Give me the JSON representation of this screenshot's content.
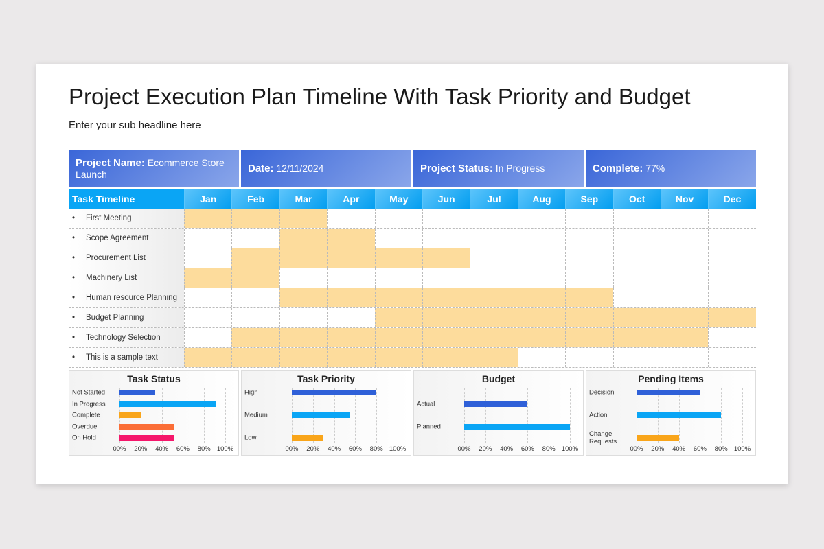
{
  "title": "Project Execution Plan Timeline With Task Priority and Budget",
  "subtitle": "Enter your sub headline here",
  "info": [
    {
      "label": "Project Name:",
      "value": "Ecommerce Store Launch"
    },
    {
      "label": "Date:",
      "value": "12/11/2024"
    },
    {
      "label": "Project Status:",
      "value": "In Progress"
    },
    {
      "label": "Complete:",
      "value": "77%"
    }
  ],
  "timeline": {
    "header": "Task Timeline",
    "months": [
      "Jan",
      "Feb",
      "Mar",
      "Apr",
      "May",
      "Jun",
      "Jul",
      "Aug",
      "Sep",
      "Oct",
      "Nov",
      "Dec"
    ],
    "bullet": "•",
    "tasks": [
      {
        "name": "First Meeting",
        "start": 1,
        "end": 3
      },
      {
        "name": "Scope Agreement",
        "start": 3,
        "end": 4
      },
      {
        "name": "Procurement List",
        "start": 2,
        "end": 6
      },
      {
        "name": "Machinery List",
        "start": 1,
        "end": 2
      },
      {
        "name": "Human resource Planning",
        "start": 3,
        "end": 9
      },
      {
        "name": "Budget Planning",
        "start": 5,
        "end": 12
      },
      {
        "name": "Technology Selection",
        "start": 2,
        "end": 11
      },
      {
        "name": "This is a sample text",
        "start": 1,
        "end": 7
      }
    ],
    "colors": {
      "bar": "#fddc9c"
    }
  },
  "chart_data": [
    {
      "type": "bar",
      "title": "Task Status",
      "ticks": [
        "00%",
        "20%",
        "40%",
        "60%",
        "80%",
        "100%"
      ],
      "xlim": [
        0,
        100
      ],
      "categories": [
        "Not Started",
        "In Progress",
        "Complete",
        "Overdue",
        "On Hold"
      ],
      "values": [
        34,
        91,
        20,
        52,
        52
      ],
      "colors": [
        "#2f60d8",
        "#0aa5f5",
        "#f9a51a",
        "#fb6e37",
        "#f5176b"
      ]
    },
    {
      "type": "bar",
      "title": "Task Priority",
      "ticks": [
        "00%",
        "20%",
        "40%",
        "60%",
        "80%",
        "100%"
      ],
      "xlim": [
        0,
        100
      ],
      "categories": [
        "High",
        "Medium",
        "Low"
      ],
      "values": [
        80,
        55,
        30
      ],
      "colors": [
        "#2f60d8",
        "#0aa5f5",
        "#f9a51a"
      ]
    },
    {
      "type": "bar",
      "title": "Budget",
      "ticks": [
        "00%",
        "20%",
        "40%",
        "60%",
        "80%",
        "100%"
      ],
      "xlim": [
        0,
        100
      ],
      "categories": [
        "Actual",
        "Planned"
      ],
      "values": [
        60,
        100
      ],
      "colors": [
        "#2f60d8",
        "#0aa5f5"
      ]
    },
    {
      "type": "bar",
      "title": "Pending Items",
      "ticks": [
        "00%",
        "20%",
        "40%",
        "60%",
        "80%",
        "100%"
      ],
      "xlim": [
        0,
        100
      ],
      "categories": [
        "Decision",
        "Action",
        "Change Requests"
      ],
      "values": [
        60,
        80,
        40
      ],
      "colors": [
        "#2f60d8",
        "#0aa5f5",
        "#f9a51a"
      ]
    }
  ]
}
